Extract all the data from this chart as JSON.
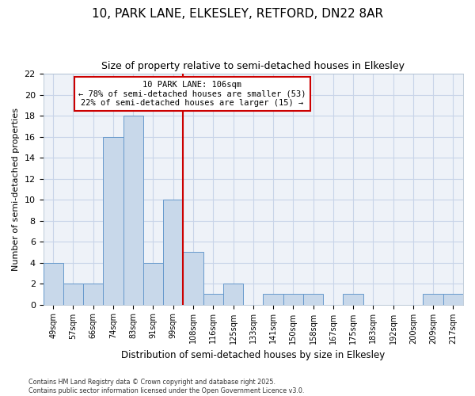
{
  "title1": "10, PARK LANE, ELKESLEY, RETFORD, DN22 8AR",
  "title2": "Size of property relative to semi-detached houses in Elkesley",
  "xlabel": "Distribution of semi-detached houses by size in Elkesley",
  "ylabel": "Number of semi-detached properties",
  "categories": [
    "49sqm",
    "57sqm",
    "66sqm",
    "74sqm",
    "83sqm",
    "91sqm",
    "99sqm",
    "108sqm",
    "116sqm",
    "125sqm",
    "133sqm",
    "141sqm",
    "150sqm",
    "158sqm",
    "167sqm",
    "175sqm",
    "183sqm",
    "192sqm",
    "200sqm",
    "209sqm",
    "217sqm"
  ],
  "values": [
    4,
    2,
    2,
    16,
    18,
    4,
    10,
    5,
    1,
    2,
    0,
    1,
    1,
    1,
    0,
    1,
    0,
    0,
    0,
    1,
    1
  ],
  "bar_color": "#c8d8ea",
  "bar_edgecolor": "#6699cc",
  "vline_index": 7,
  "vline_color": "#cc0000",
  "annotation_title": "10 PARK LANE: 106sqm",
  "annotation_line1": "← 78% of semi-detached houses are smaller (53)",
  "annotation_line2": "22% of semi-detached houses are larger (15) →",
  "annotation_box_color": "#ffffff",
  "annotation_box_edgecolor": "#cc0000",
  "ylim": [
    0,
    22
  ],
  "yticks": [
    0,
    2,
    4,
    6,
    8,
    10,
    12,
    14,
    16,
    18,
    20,
    22
  ],
  "footnote1": "Contains HM Land Registry data © Crown copyright and database right 2025.",
  "footnote2": "Contains public sector information licensed under the Open Government Licence v3.0.",
  "bg_color": "#ffffff",
  "plot_bg_color": "#eef2f8",
  "grid_color": "#c8d4e8",
  "title1_fontsize": 11,
  "title2_fontsize": 9
}
